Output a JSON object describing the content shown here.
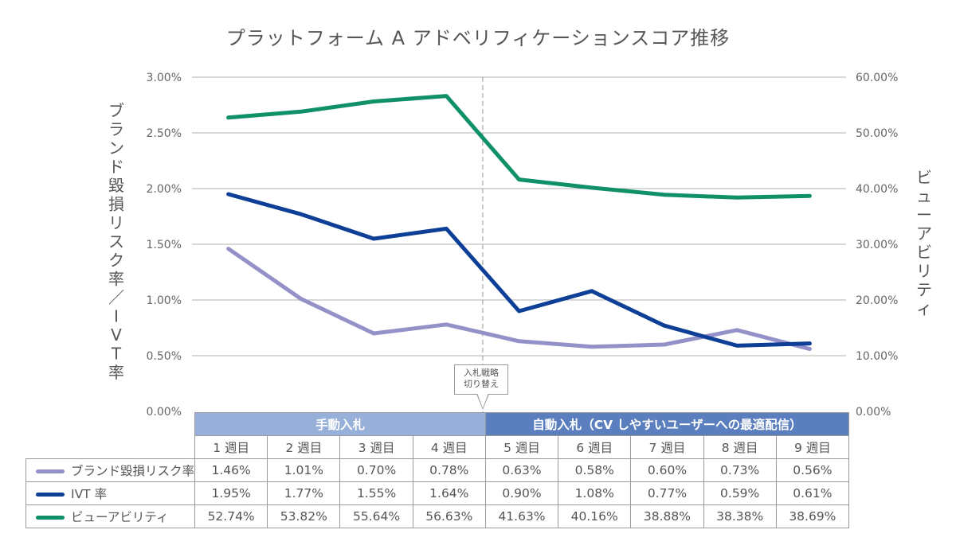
{
  "chart_data": {
    "type": "line",
    "title": "プラットフォーム A アドベリフィケーションスコア推移",
    "categories": [
      "1 週目",
      "2 週目",
      "3 週目",
      "4 週目",
      "5 週目",
      "6 週目",
      "7 週目",
      "8 週目",
      "9 週目"
    ],
    "ylabel_left": "ブランド毀損リスク率／IVT率",
    "ylabel_right": "ビューアビリティ",
    "ylim_left": [
      0,
      3.0
    ],
    "ylim_right": [
      0,
      60
    ],
    "yticks_left": [
      "0.00%",
      "0.50%",
      "1.00%",
      "1.50%",
      "2.00%",
      "2.50%",
      "3.00%"
    ],
    "yticks_right": [
      "0.00%",
      "10.00%",
      "20.00%",
      "30.00%",
      "40.00%",
      "50.00%",
      "60.00%"
    ],
    "grid": true,
    "series": [
      {
        "name": "ブランド毀損リスク率",
        "axis": "left",
        "color": "#9490c8",
        "values": [
          1.46,
          1.01,
          0.7,
          0.78,
          0.63,
          0.58,
          0.6,
          0.73,
          0.56
        ],
        "labels": [
          "1.46%",
          "1.01%",
          "0.70%",
          "0.78%",
          "0.63%",
          "0.58%",
          "0.60%",
          "0.73%",
          "0.56%"
        ]
      },
      {
        "name": "IVT 率",
        "axis": "left",
        "color": "#0d3f96",
        "values": [
          1.95,
          1.77,
          1.55,
          1.64,
          0.9,
          1.08,
          0.77,
          0.59,
          0.61
        ],
        "labels": [
          "1.95%",
          "1.77%",
          "1.55%",
          "1.64%",
          "0.90%",
          "1.08%",
          "0.77%",
          "0.59%",
          "0.61%"
        ]
      },
      {
        "name": "ビューアビリティ",
        "axis": "right",
        "color": "#0f9068",
        "values": [
          52.74,
          53.82,
          55.64,
          56.63,
          41.63,
          40.16,
          38.88,
          38.38,
          38.69
        ],
        "labels": [
          "52.74%",
          "53.82%",
          "55.64%",
          "56.63%",
          "41.63%",
          "40.16%",
          "38.88%",
          "38.38%",
          "38.69%"
        ]
      }
    ],
    "annotation": {
      "text_line1": "入札戦略",
      "text_line2": "切り替え",
      "between": [
        "4 週目",
        "5 週目"
      ]
    },
    "phases": [
      {
        "label": "手動入札",
        "span": 4,
        "color": "#97b0d9"
      },
      {
        "label": "自動入札（CV しやすいユーザーへの最適配信）",
        "span": 5,
        "color": "#5b7fbe"
      }
    ]
  }
}
